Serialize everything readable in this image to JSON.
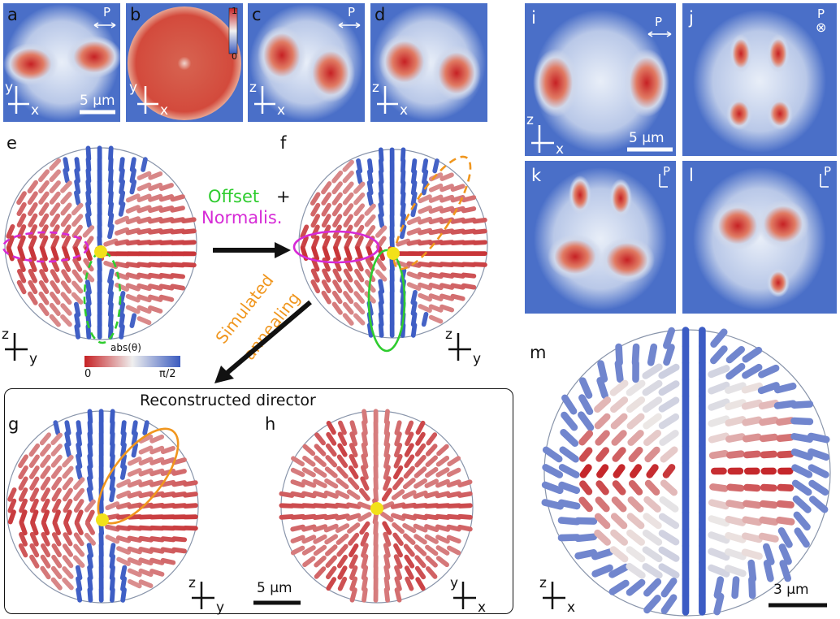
{
  "figure": {
    "panel_labels": [
      "a",
      "b",
      "c",
      "d",
      "e",
      "f",
      "g",
      "h",
      "i",
      "j",
      "k",
      "l",
      "m"
    ],
    "colorbar_top": {
      "max": "1",
      "min": "0"
    },
    "colorbar_director": {
      "label": "abs(θ)",
      "min": "0",
      "max": "π/2"
    },
    "polarizer": {
      "symbol": "P",
      "out_of_plane": "⊗"
    },
    "axes": {
      "x": "x",
      "y": "y",
      "z": "z"
    },
    "scalebars": {
      "five_um": "5 µm",
      "three_um": "3 µm"
    },
    "annotations": {
      "offset": "Offset",
      "plus": "+",
      "normalis": "Normalis.",
      "simulated": "Simulated",
      "annealing": "annealing",
      "reconstructed": "Reconstructed director"
    },
    "colors": {
      "bg_blue": "#4a6fc8",
      "hot_red": "#c8262a",
      "pale": "#e9eef7",
      "green": "#2ecc2e",
      "magenta": "#d62ad6",
      "orange": "#f0961e",
      "defect": "#f2e11a"
    }
  }
}
